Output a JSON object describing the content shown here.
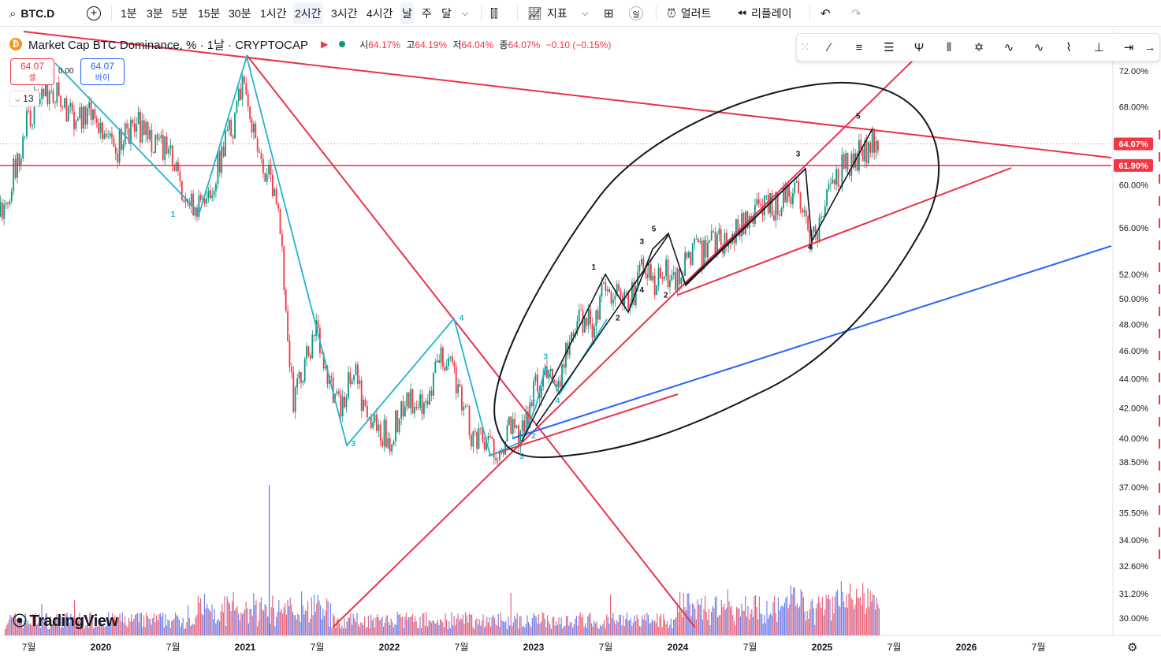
{
  "toolbar": {
    "symbol": "BTC.D",
    "intervals": [
      "1분",
      "3분",
      "5분",
      "15분",
      "30분",
      "1시간",
      "2시간",
      "3시간",
      "4시간",
      "날",
      "주",
      "달"
    ],
    "active_intervals": [
      "2시간",
      "날"
    ],
    "indicators_label": "지표",
    "indicator_badge": "일",
    "alert_label": "얼러트",
    "replay_label": "리플레이"
  },
  "legend": {
    "title": "Market Cap BTC Dominance, % · 1날 · CRYPTOCAP",
    "o_key": "시",
    "o_val": "64.17%",
    "h_key": "고",
    "h_val": "64.19%",
    "l_key": "저",
    "l_val": "64.04%",
    "c_key": "종",
    "c_val": "64.07%",
    "change": "−0.10 (−0.15%)"
  },
  "trade": {
    "sell_price": "64.07",
    "sell_label": "셀",
    "buy_price": "64.07",
    "buy_label": "바이",
    "spread": "0.00",
    "collapse_count": "13"
  },
  "branding": {
    "logo_text": "TradingView"
  },
  "colors": {
    "up": "#089981",
    "down": "#f23645",
    "red_line": "#e8334a",
    "cyan_line": "#22b5cc",
    "blue_line": "#2962ff",
    "vol_blue": "#5b6ee8",
    "vol_red": "#e44d67"
  },
  "chart_data": {
    "type": "line",
    "y_scale": "log",
    "ylim": [
      29.3,
      75.5
    ],
    "y_ticks": [
      "72.00%",
      "68.00%",
      "64.07%",
      "61.90%",
      "60.00%",
      "56.00%",
      "52.00%",
      "50.00%",
      "48.00%",
      "46.00%",
      "44.00%",
      "42.00%",
      "40.00%",
      "38.50%",
      "37.00%",
      "35.50%",
      "34.00%",
      "32.60%",
      "31.20%",
      "30.00%"
    ],
    "x_ticks": [
      "7월",
      "2020",
      "7월",
      "2021",
      "7월",
      "2022",
      "7월",
      "2023",
      "7월",
      "2024",
      "7월",
      "2025",
      "7월",
      "2026",
      "7월"
    ],
    "xlim": [
      "2019-04",
      "2026-12"
    ],
    "current_price": 64.07,
    "horizontal_level": 61.9,
    "series": [
      {
        "x": [
          "2019-04",
          "2019-05",
          "2019-06",
          "2019-07",
          "2019-08",
          "2019-09",
          "2019-10",
          "2019-11",
          "2019-12",
          "2020-01",
          "2020-02",
          "2020-03",
          "2020-04",
          "2020-05",
          "2020-06",
          "2020-07",
          "2020-08",
          "2020-09",
          "2020-10",
          "2020-11",
          "2020-12",
          "2021-01",
          "2021-02",
          "2021-03",
          "2021-04",
          "2021-05",
          "2021-06",
          "2021-07",
          "2021-08",
          "2021-09",
          "2021-10",
          "2021-11",
          "2021-12",
          "2022-01",
          "2022-02",
          "2022-03",
          "2022-04",
          "2022-05",
          "2022-06",
          "2022-07",
          "2022-08",
          "2022-09",
          "2022-10",
          "2022-11",
          "2022-12",
          "2023-01",
          "2023-02",
          "2023-03",
          "2023-04",
          "2023-05",
          "2023-06",
          "2023-07",
          "2023-08",
          "2023-09",
          "2023-10",
          "2023-11",
          "2023-12",
          "2024-01",
          "2024-02",
          "2024-03",
          "2024-04",
          "2024-05",
          "2024-06",
          "2024-07",
          "2024-08",
          "2024-09",
          "2024-10",
          "2024-11",
          "2024-12",
          "2025-01",
          "2025-02",
          "2025-03",
          "2025-04",
          "2025-05",
          "2025-06"
        ],
        "values": [
          57.0,
          58.5,
          62.0,
          67.0,
          69.5,
          70.0,
          68.0,
          67.0,
          67.5,
          66.0,
          63.0,
          65.0,
          66.0,
          65.0,
          64.0,
          62.0,
          59.0,
          57.5,
          59.0,
          63.0,
          66.0,
          71.0,
          63.0,
          61.0,
          55.0,
          42.0,
          45.0,
          47.5,
          44.0,
          41.5,
          45.0,
          41.5,
          40.5,
          40.0,
          42.0,
          42.5,
          41.5,
          45.0,
          46.0,
          42.5,
          40.0,
          39.5,
          39.5,
          40.5,
          40.0,
          43.0,
          44.5,
          44.0,
          46.5,
          48.5,
          48.0,
          51.5,
          50.0,
          49.5,
          53.0,
          51.0,
          52.0,
          51.5,
          54.0,
          53.5,
          55.0,
          55.0,
          56.0,
          57.0,
          57.5,
          58.0,
          59.0,
          60.0,
          54.5,
          57.0,
          60.5,
          62.0,
          63.0,
          64.0,
          64.07
        ]
      }
    ],
    "annotations": {
      "cyan_wave": [
        {
          "label": "1",
          "x": "2020-07",
          "y": 57.0
        },
        {
          "label": "3",
          "x": "2021-10",
          "y": 39.5
        },
        {
          "label": "4",
          "x": "2022-07",
          "y": 48.3
        },
        {
          "label": "5",
          "x": "2022-12",
          "y": 38.7
        },
        {
          "label": "1",
          "x": "2023-01",
          "y": 42.5
        },
        {
          "label": "2",
          "x": "2023-01",
          "y": 40.0
        },
        {
          "label": "3",
          "x": "2023-02",
          "y": 45.4
        },
        {
          "label": "4",
          "x": "2023-03",
          "y": 42.3
        }
      ],
      "black_wave": [
        {
          "label": "1",
          "x": "2023-06",
          "y": 52.4
        },
        {
          "label": "2",
          "x": "2023-08",
          "y": 48.3
        },
        {
          "label": "3",
          "x": "2023-10",
          "y": 54.6
        },
        {
          "label": "4",
          "x": "2023-10",
          "y": 50.5
        },
        {
          "label": "5",
          "x": "2023-11",
          "y": 55.7
        },
        {
          "label": "2",
          "x": "2023-12",
          "y": 50.1
        },
        {
          "label": "3",
          "x": "2024-11",
          "y": 62.8
        },
        {
          "label": "4",
          "x": "2024-12",
          "y": 54.1
        },
        {
          "label": "5",
          "x": "2025-04",
          "y": 66.7
        }
      ]
    }
  }
}
